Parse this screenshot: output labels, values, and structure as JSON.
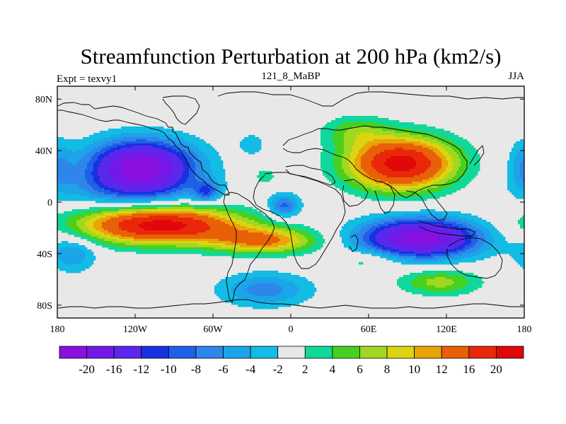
{
  "chart_data": {
    "type": "heatmap",
    "title": "Streamfunction Perturbation at 200 hPa (km2/s)",
    "subtitle_left": "Expt = texvy1",
    "subtitle_center": "121_8_MaBP",
    "subtitle_right": "JJA",
    "x_range": [
      -180,
      180
    ],
    "y_range": [
      -90,
      90
    ],
    "x_ticks": [
      {
        "value": -180,
        "label": "180"
      },
      {
        "value": -120,
        "label": "120W"
      },
      {
        "value": -60,
        "label": "60W"
      },
      {
        "value": 0,
        "label": "0"
      },
      {
        "value": 60,
        "label": "60E"
      },
      {
        "value": 120,
        "label": "120E"
      },
      {
        "value": 180,
        "label": "180"
      }
    ],
    "y_ticks": [
      {
        "value": 80,
        "label": "80N"
      },
      {
        "value": 40,
        "label": "40N"
      },
      {
        "value": 0,
        "label": "0"
      },
      {
        "value": -40,
        "label": "40S"
      },
      {
        "value": -80,
        "label": "80S"
      }
    ],
    "colorbar": {
      "labels": [
        "-20",
        "-16",
        "-12",
        "-10",
        "-8",
        "-6",
        "-4",
        "-2",
        "2",
        "4",
        "6",
        "8",
        "10",
        "12",
        "16",
        "20"
      ],
      "levels": [
        -20,
        -16,
        -12,
        -10,
        -8,
        -6,
        -4,
        -2,
        2,
        4,
        6,
        8,
        10,
        12,
        16,
        20
      ],
      "colors": [
        "#8a10e0",
        "#7418e8",
        "#5a28ec",
        "#1830e0",
        "#1e60e8",
        "#2e86ea",
        "#1ca4e8",
        "#12bce4",
        "#e8e8e8",
        "#10d89a",
        "#48d020",
        "#a0d820",
        "#dcd410",
        "#e8a408",
        "#e86008",
        "#e82808",
        "#e00808"
      ]
    },
    "features": [
      {
        "lon": -115,
        "lat": 28,
        "sx": 40,
        "sy": 20,
        "value": -22
      },
      {
        "lon": -125,
        "lat": 10,
        "sx": 55,
        "sy": 14,
        "value": -5
      },
      {
        "lon": -65,
        "lat": 8,
        "sx": 10,
        "sy": 8,
        "value": -8
      },
      {
        "lon": -5,
        "lat": -3,
        "sx": 12,
        "sy": 9,
        "value": -9
      },
      {
        "lon": -100,
        "lat": -18,
        "sx": 60,
        "sy": 14,
        "value": 22
      },
      {
        "lon": -20,
        "lat": -30,
        "sx": 40,
        "sy": 10,
        "value": 12
      },
      {
        "lon": 100,
        "lat": -28,
        "sx": 45,
        "sy": 15,
        "value": -22
      },
      {
        "lon": 85,
        "lat": 30,
        "sx": 40,
        "sy": 20,
        "value": 22
      },
      {
        "lon": 50,
        "lat": 55,
        "sx": 25,
        "sy": 12,
        "value": 5
      },
      {
        "lon": -20,
        "lat": -68,
        "sx": 35,
        "sy": 13,
        "value": -7
      },
      {
        "lon": 115,
        "lat": -62,
        "sx": 30,
        "sy": 10,
        "value": 7
      },
      {
        "lon": -168,
        "lat": -40,
        "sx": 18,
        "sy": 14,
        "value": -6
      },
      {
        "lon": 180,
        "lat": 28,
        "sx": 12,
        "sy": 20,
        "value": -5
      },
      {
        "lon": -30,
        "lat": 45,
        "sx": 12,
        "sy": 10,
        "value": -3
      },
      {
        "lon": -20,
        "lat": 20,
        "sx": 10,
        "sy": 8,
        "value": 3
      },
      {
        "lon": 60,
        "lat": -45,
        "sx": 25,
        "sy": 8,
        "value": 4
      }
    ]
  }
}
